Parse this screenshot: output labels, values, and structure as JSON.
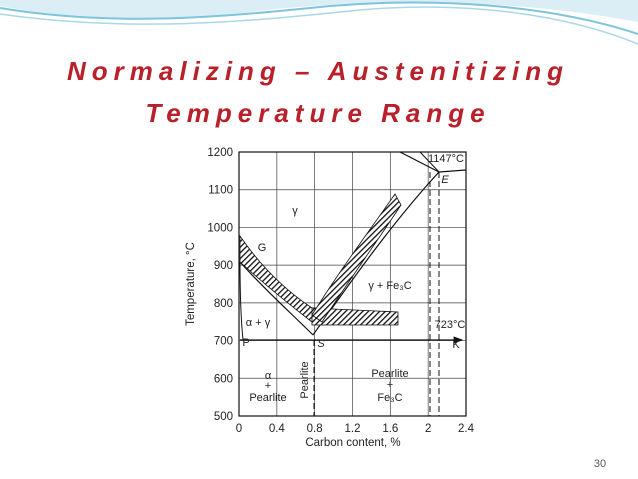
{
  "slide": {
    "title_lines": [
      "Normalizing – Austenitizing",
      "Temperature Range"
    ],
    "page_number": "30"
  },
  "diagram": {
    "x_label": "Carbon content, %",
    "y_label": "Temperature, °C",
    "xlim": [
      0,
      2.4
    ],
    "xticks": [
      0,
      0.4,
      0.8,
      1.2,
      1.6,
      2.0,
      2.4
    ],
    "ylim": [
      500,
      1200
    ],
    "yticks": [
      500,
      600,
      700,
      800,
      900,
      1000,
      1100,
      1200
    ],
    "labels": {
      "gamma": "γ",
      "g_point": "G",
      "gamma_fe3c": "γ + Fe₃C",
      "alpha_gamma": "α + γ",
      "p_point": "P",
      "s_point": "S",
      "k_point": "K",
      "e_point": "E",
      "temp_1147": "1147°C",
      "temp_723": "723°C",
      "alpha_pearlite": [
        "α",
        "+",
        "Pearlite"
      ],
      "pearlite": "Pearlite",
      "pearlite_fe3c": [
        "Pearlite",
        "+",
        "Fe₃C"
      ]
    }
  }
}
